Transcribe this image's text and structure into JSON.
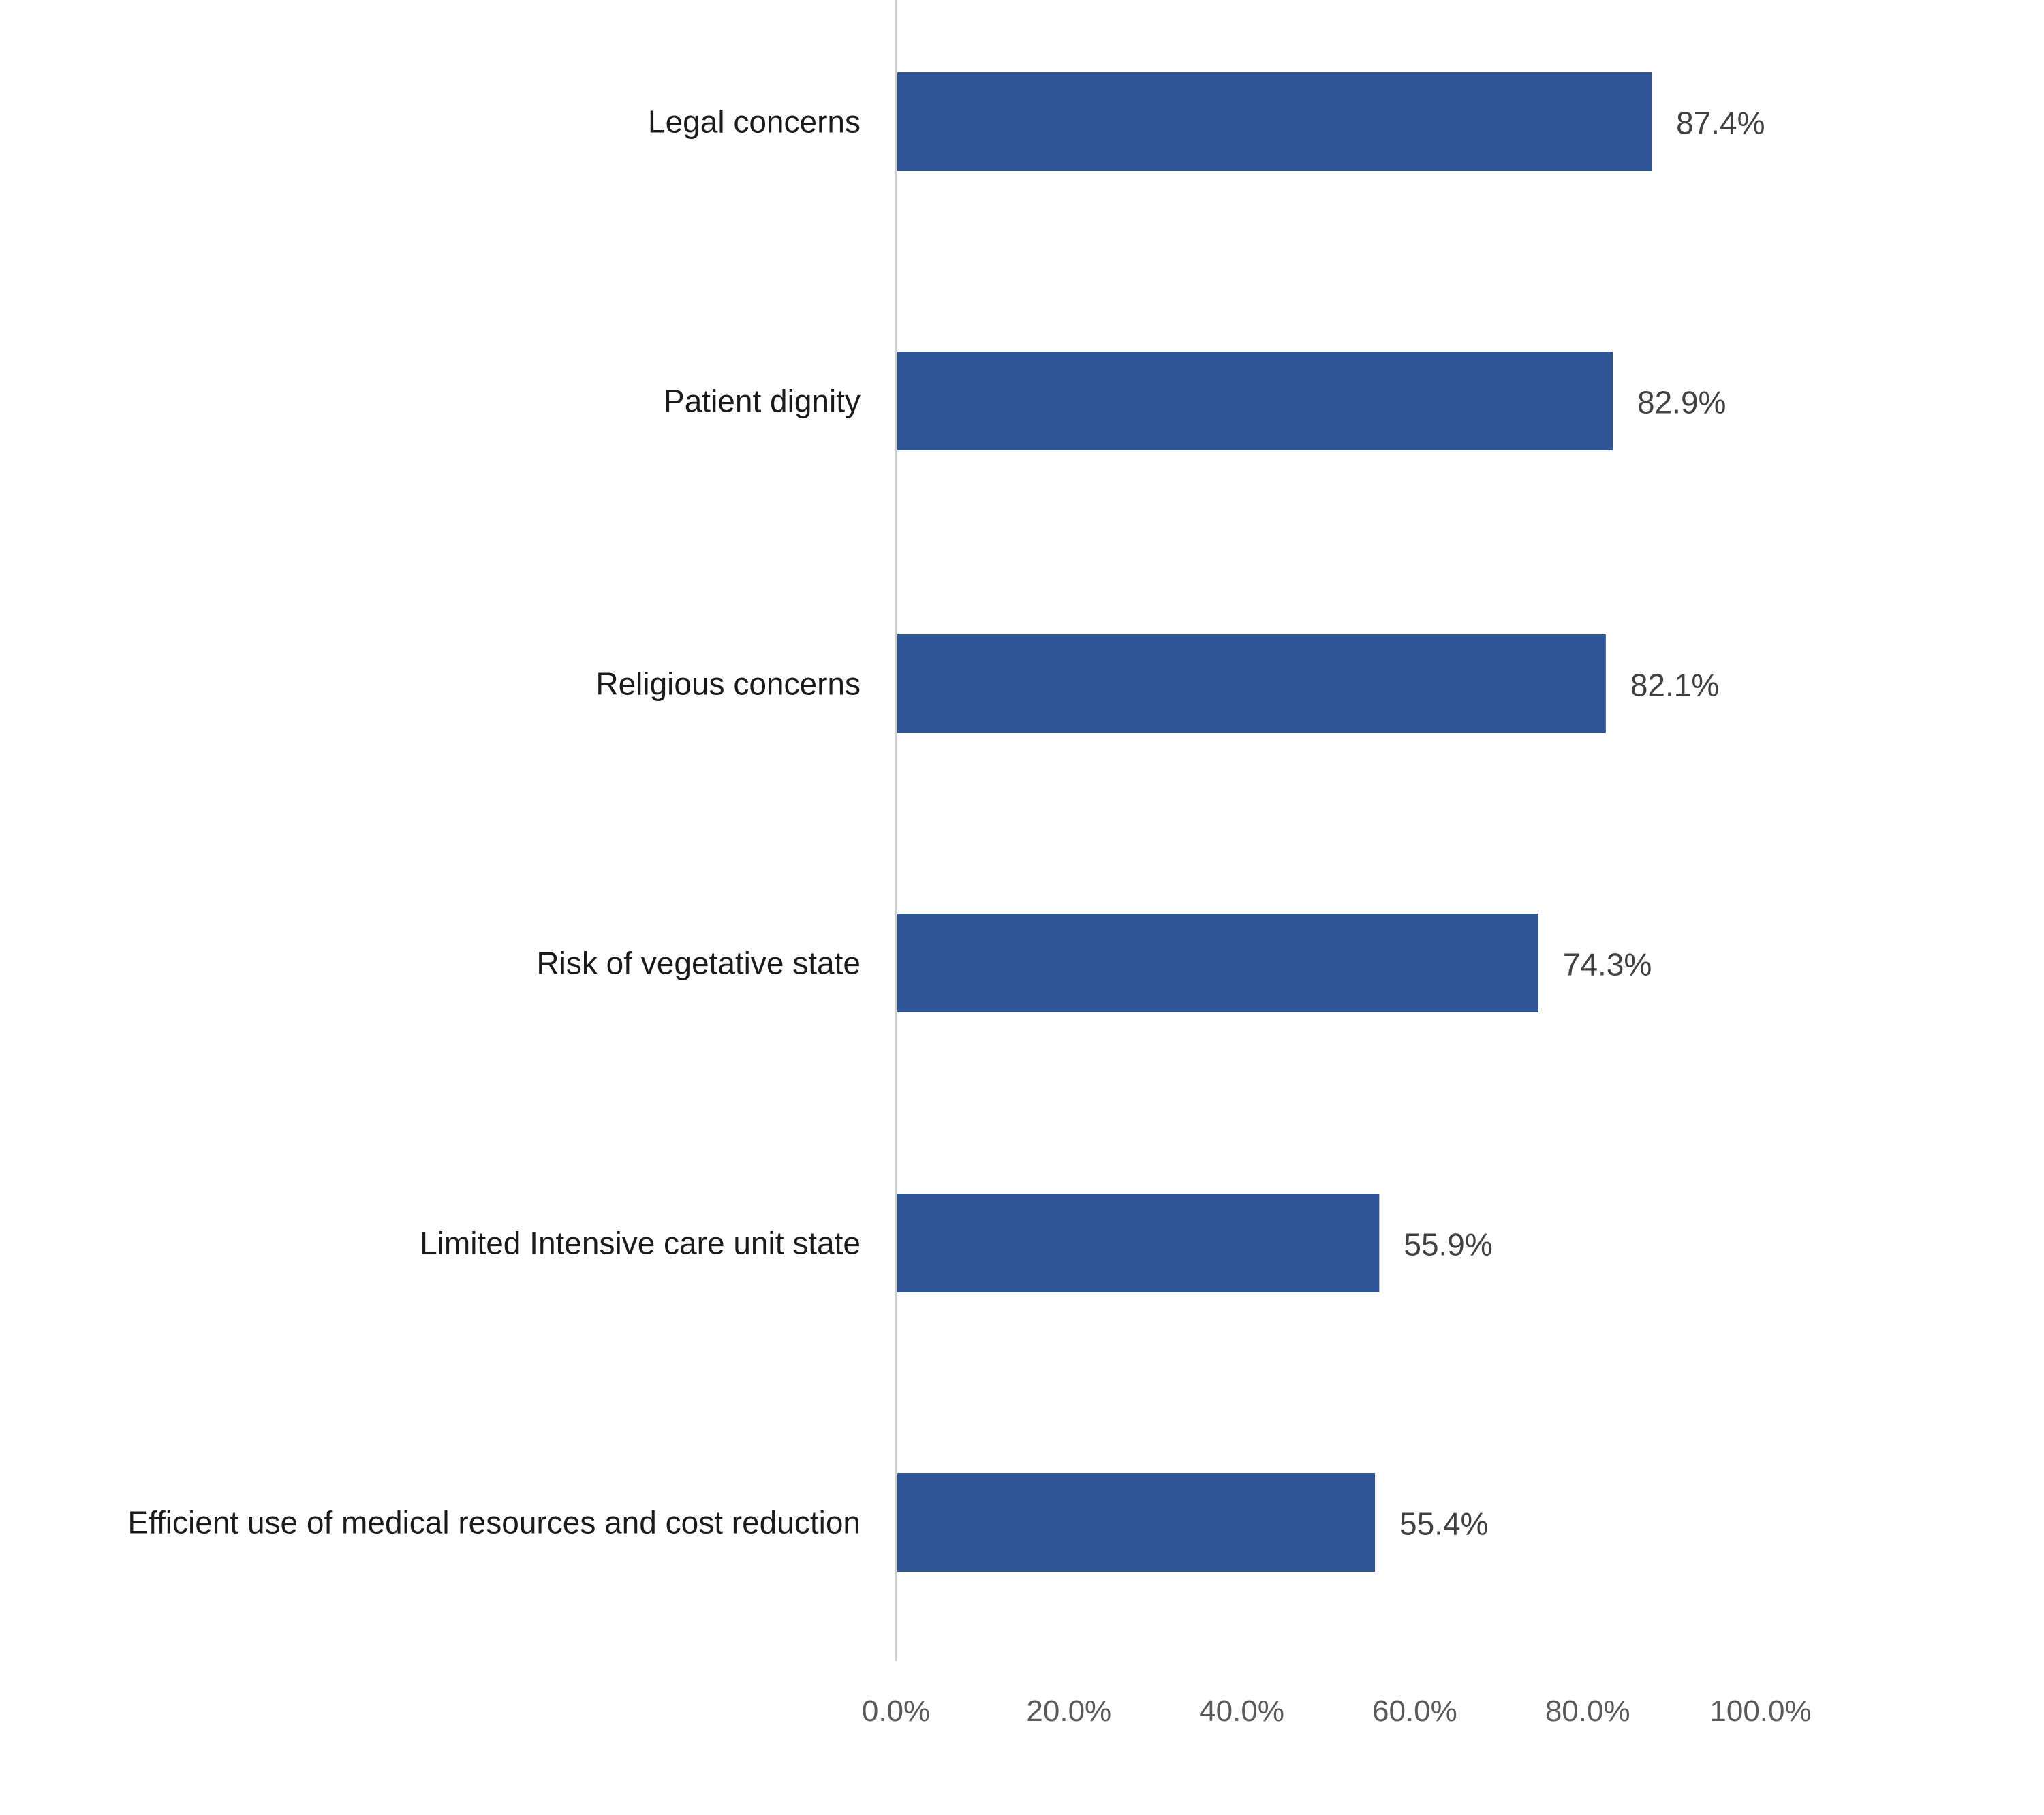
{
  "chart_data": {
    "type": "bar",
    "orientation": "horizontal",
    "title": "",
    "xlabel": "",
    "ylabel": "",
    "categories": [
      "Legal concerns",
      "Patient dignity",
      "Religious concerns",
      "Risk of vegetative state",
      "Limited Intensive care unit  state",
      "Efficient use of medical resources and cost reduction"
    ],
    "values": [
      87.4,
      82.9,
      82.1,
      74.3,
      55.9,
      55.4
    ],
    "data_labels": [
      "87.4%",
      "82.9%",
      "82.1%",
      "74.3%",
      "55.9%",
      "55.4%"
    ],
    "xlim": [
      0,
      100
    ],
    "xticks": [
      0,
      20,
      40,
      60,
      80,
      100
    ],
    "xtick_labels": [
      "0.0%",
      "20.0%",
      "40.0%",
      "60.0%",
      "80.0%",
      "100.0%"
    ],
    "grid": false,
    "legend": "none",
    "colors": {
      "bar": "#2F5597",
      "axis": "#D0D0D0"
    }
  }
}
